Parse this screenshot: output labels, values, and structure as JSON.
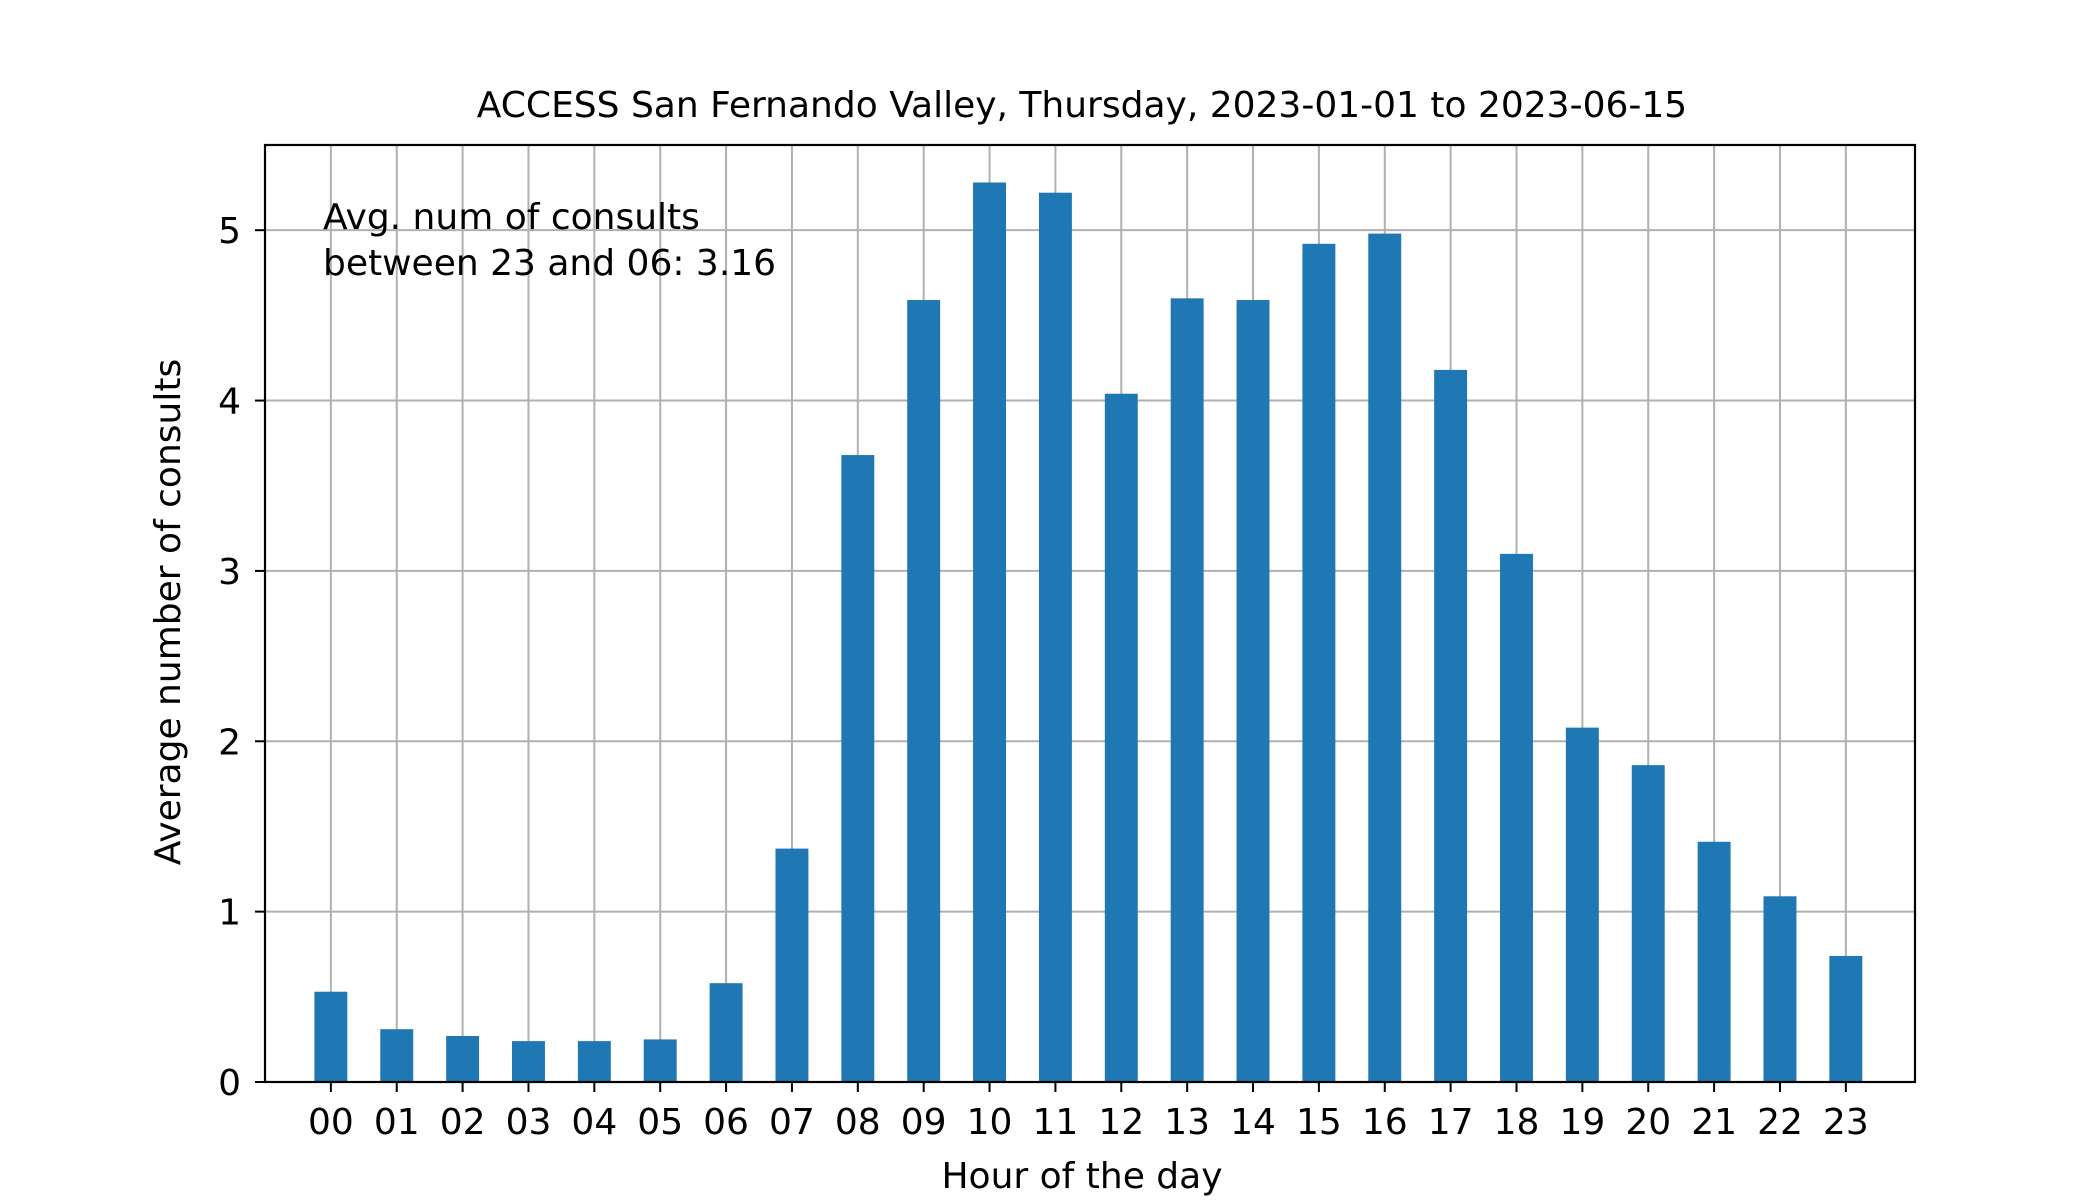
{
  "chart_data": {
    "type": "bar",
    "title": "ACCESS San Fernando Valley, Thursday, 2023-01-01 to 2023-06-15",
    "xlabel": "Hour of the day",
    "ylabel": "Average number of consults",
    "annotation": [
      "Avg. num of consults",
      "between 23 and 06: 3.16"
    ],
    "categories": [
      "00",
      "01",
      "02",
      "03",
      "04",
      "05",
      "06",
      "07",
      "08",
      "09",
      "10",
      "11",
      "12",
      "13",
      "14",
      "15",
      "16",
      "17",
      "18",
      "19",
      "20",
      "21",
      "22",
      "23"
    ],
    "values": [
      0.53,
      0.31,
      0.27,
      0.24,
      0.24,
      0.25,
      0.58,
      1.37,
      3.68,
      4.59,
      5.28,
      5.22,
      4.04,
      4.6,
      4.59,
      4.92,
      4.98,
      4.18,
      3.1,
      2.08,
      1.86,
      1.41,
      1.09,
      0.74
    ],
    "ylim": [
      0,
      5.5
    ],
    "yticks": [
      0,
      1,
      2,
      3,
      4,
      5
    ],
    "grid": true,
    "bar_color": "#1f77b4",
    "grid_color": "#b0b0b0"
  }
}
